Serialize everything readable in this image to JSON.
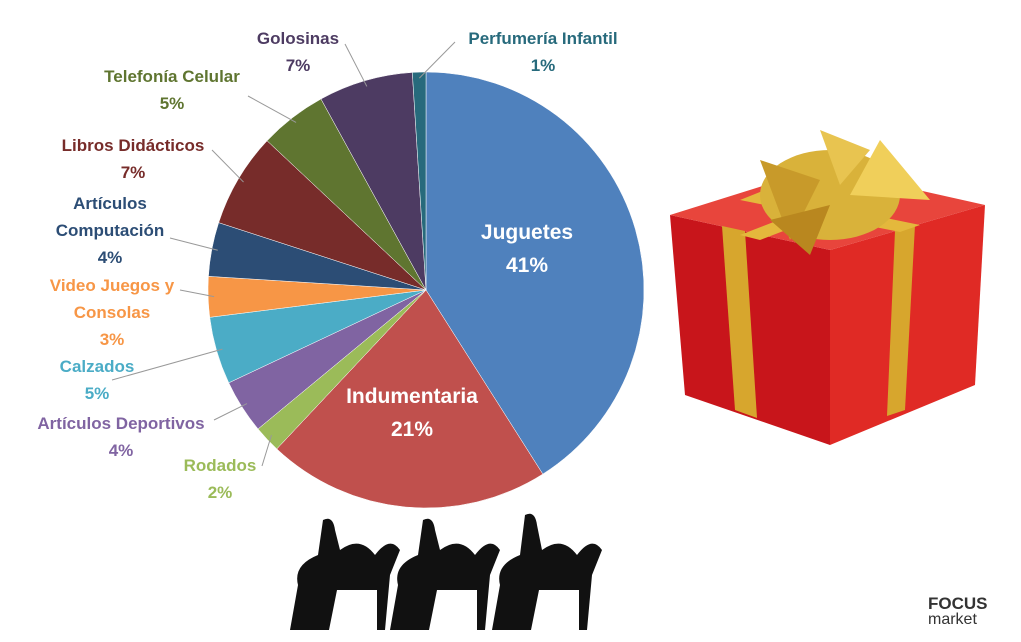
{
  "chart_data": {
    "type": "pie",
    "categories": [
      "Juguetes",
      "Indumentaria",
      "Rodados",
      "Artículos Deportivos",
      "Calzados",
      "Video Juegos y Consolas",
      "Artículos Computación",
      "Libros Didácticos",
      "Telefonía Celular",
      "Golosinas",
      "Perfumería Infantil"
    ],
    "values": [
      41,
      21,
      2,
      4,
      5,
      3,
      4,
      7,
      5,
      7,
      1
    ],
    "value_labels": [
      "41%",
      "21%",
      "2%",
      "4%",
      "5%",
      "3%",
      "4%",
      "7%",
      "5%",
      "7%",
      "1%"
    ],
    "colors": [
      "#4f81bd",
      "#c0504d",
      "#9bbb59",
      "#8064a2",
      "#4bacc6",
      "#f79646",
      "#2c4d75",
      "#772c2a",
      "#5f7530",
      "#4d3b62",
      "#276a7c"
    ]
  },
  "logo": {
    "brand": "FOCUS",
    "sub": "market"
  }
}
